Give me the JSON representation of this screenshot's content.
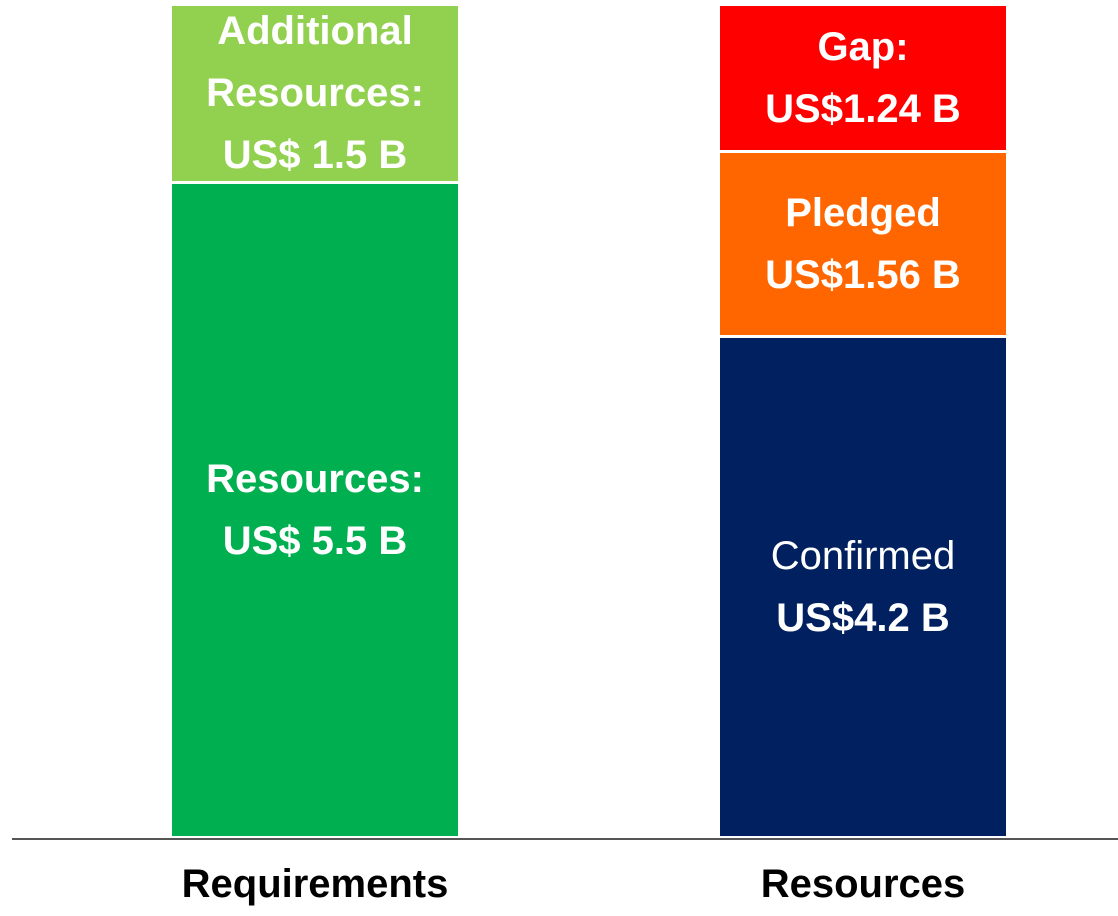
{
  "chart_data": {
    "type": "stacked_bar",
    "categories": [
      "Requirements",
      "Resources"
    ],
    "series": [
      {
        "name": "Resources:",
        "color": "#00b050",
        "values": [
          5.5,
          null
        ],
        "value_labels": [
          "US$ 5.5 B",
          null
        ]
      },
      {
        "name": "Additional Resources:",
        "color": "#92d050",
        "values": [
          1.5,
          null
        ],
        "value_labels": [
          "US$ 1.5 B",
          null
        ]
      },
      {
        "name": "Confirmed",
        "color": "#002060",
        "values": [
          null,
          4.2
        ],
        "value_labels": [
          null,
          "US$4.2 B"
        ]
      },
      {
        "name": "Pledged",
        "color": "#ff6600",
        "values": [
          null,
          1.56
        ],
        "value_labels": [
          null,
          "US$1.56 B"
        ]
      },
      {
        "name": "Gap:",
        "color": "#ff0000",
        "values": [
          null,
          1.24
        ],
        "value_labels": [
          null,
          "US$1.24 B"
        ]
      }
    ]
  }
}
